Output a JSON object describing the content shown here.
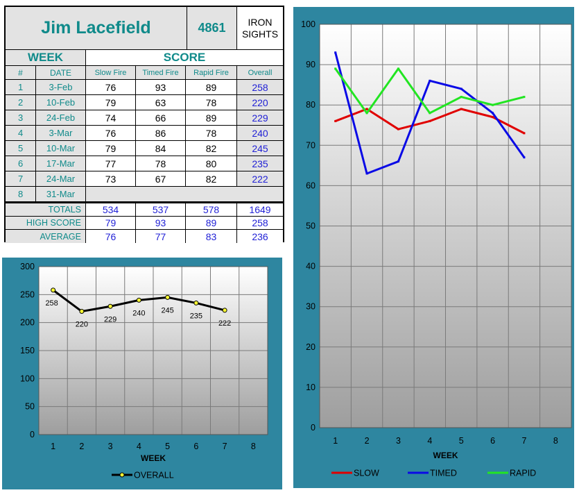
{
  "header": {
    "name": "Jim Lacefield",
    "id": "4861",
    "category_line1": "IRON",
    "category_line2": "SIGHTS"
  },
  "table": {
    "week_label": "WEEK",
    "score_label": "SCORE",
    "col_num": "#",
    "col_date": "DATE",
    "col_slow": "Slow Fire",
    "col_timed": "Timed Fire",
    "col_rapid": "Rapid Fire",
    "col_overall": "Overall",
    "rows": [
      {
        "num": "1",
        "date": "3-Feb",
        "slow": "76",
        "timed": "93",
        "rapid": "89",
        "overall": "258"
      },
      {
        "num": "2",
        "date": "10-Feb",
        "slow": "79",
        "timed": "63",
        "rapid": "78",
        "overall": "220"
      },
      {
        "num": "3",
        "date": "24-Feb",
        "slow": "74",
        "timed": "66",
        "rapid": "89",
        "overall": "229"
      },
      {
        "num": "4",
        "date": "3-Mar",
        "slow": "76",
        "timed": "86",
        "rapid": "78",
        "overall": "240"
      },
      {
        "num": "5",
        "date": "10-Mar",
        "slow": "79",
        "timed": "84",
        "rapid": "82",
        "overall": "245"
      },
      {
        "num": "6",
        "date": "17-Mar",
        "slow": "77",
        "timed": "78",
        "rapid": "80",
        "overall": "235"
      },
      {
        "num": "7",
        "date": "24-Mar",
        "slow": "73",
        "timed": "67",
        "rapid": "82",
        "overall": "222"
      },
      {
        "num": "8",
        "date": "31-Mar",
        "slow": "",
        "timed": "",
        "rapid": "",
        "overall": ""
      }
    ],
    "totals": {
      "label": "TOTALS",
      "slow": "534",
      "timed": "537",
      "rapid": "578",
      "overall": "1649"
    },
    "high": {
      "label": "HIGH SCORE",
      "slow": "79",
      "timed": "93",
      "rapid": "89",
      "overall": "258"
    },
    "average": {
      "label": "AVERAGE",
      "slow": "76",
      "timed": "77",
      "rapid": "83",
      "overall": "236"
    }
  },
  "colors": {
    "panel": "#2e86a0",
    "teal_text": "#0f8a8a",
    "blue_text": "#1f1fd6",
    "slow": "#e00000",
    "timed": "#0a0ae6",
    "rapid": "#22e522",
    "overall": "#000000"
  },
  "chart_data": [
    {
      "type": "line",
      "x": [
        1,
        2,
        3,
        4,
        5,
        6,
        7
      ],
      "xticks": [
        1,
        2,
        3,
        4,
        5,
        6,
        7,
        8
      ],
      "xlim": [
        0.5,
        8.5
      ],
      "ylim": [
        0,
        300
      ],
      "yticks": [
        0,
        50,
        100,
        150,
        200,
        250,
        300
      ],
      "xlabel": "WEEK",
      "ylabel": "",
      "title": "",
      "grid": true,
      "legend": "bottom",
      "data_labels": true,
      "series": [
        {
          "name": "OVERALL",
          "values": [
            258,
            220,
            229,
            240,
            245,
            235,
            222
          ],
          "color": "#000000"
        }
      ]
    },
    {
      "type": "line",
      "x": [
        1,
        2,
        3,
        4,
        5,
        6,
        7
      ],
      "xticks": [
        1,
        2,
        3,
        4,
        5,
        6,
        7,
        8
      ],
      "xlim": [
        0.5,
        8.5
      ],
      "ylim": [
        0,
        100
      ],
      "yticks": [
        0,
        10,
        20,
        30,
        40,
        50,
        60,
        70,
        80,
        90,
        100
      ],
      "xlabel": "WEEK",
      "ylabel": "",
      "title": "",
      "grid": true,
      "legend": "bottom",
      "series": [
        {
          "name": "SLOW",
          "values": [
            76,
            79,
            74,
            76,
            79,
            77,
            73
          ],
          "color": "#e00000"
        },
        {
          "name": "TIMED",
          "values": [
            93,
            63,
            66,
            86,
            84,
            78,
            67
          ],
          "color": "#0a0ae6"
        },
        {
          "name": "RAPID",
          "values": [
            89,
            78,
            89,
            78,
            82,
            80,
            82
          ],
          "color": "#22e522"
        }
      ]
    }
  ]
}
